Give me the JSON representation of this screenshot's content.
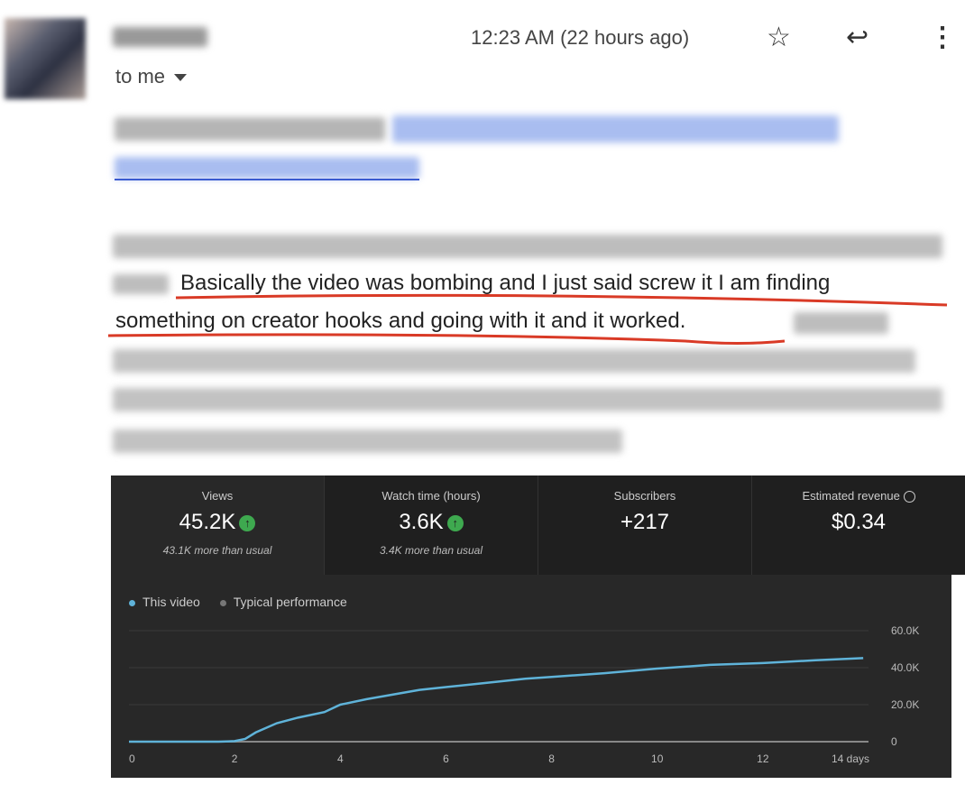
{
  "header": {
    "recipient": "to me",
    "time": "12:23 AM (22 hours ago)",
    "icons": [
      "star-icon",
      "reply-icon",
      "more-vert-icon"
    ]
  },
  "body": {
    "line2_visible": "Basically the video was bombing and I just said screw it I am finding",
    "line3_visible": "something on creator hooks and going with it and it worked."
  },
  "analytics": {
    "metrics": [
      {
        "label": "Views",
        "value": "45.2K",
        "trend": "up",
        "sub": "43.1K more than usual"
      },
      {
        "label": "Watch time (hours)",
        "value": "3.6K",
        "trend": "up",
        "sub": "3.4K more than usual"
      },
      {
        "label": "Subscribers",
        "value": "+217",
        "sub": ""
      },
      {
        "label": "Estimated revenue",
        "value": "$0.34",
        "sub": ""
      }
    ],
    "legend": [
      {
        "label": "This video",
        "color": "#5fb3d9"
      },
      {
        "label": "Typical performance",
        "color": "#777777"
      }
    ]
  },
  "chart_data": {
    "type": "line",
    "xlim": [
      0,
      14
    ],
    "ylim": [
      0,
      60000
    ],
    "x_ticks": [
      "0",
      "2",
      "4",
      "6",
      "8",
      "10",
      "12",
      "14 days"
    ],
    "y_ticks": [
      "0",
      "20.0K",
      "40.0K",
      "60.0K"
    ],
    "grid": true,
    "legend_placement": "top-left",
    "series": [
      {
        "name": "This video",
        "color": "#5fb3d9",
        "points": [
          [
            0,
            0
          ],
          [
            1.7,
            0
          ],
          [
            2,
            300
          ],
          [
            2.2,
            1500
          ],
          [
            2.4,
            5000
          ],
          [
            2.8,
            10000
          ],
          [
            3.2,
            13000
          ],
          [
            3.7,
            16000
          ],
          [
            4,
            20000
          ],
          [
            4.5,
            23000
          ],
          [
            5,
            25500
          ],
          [
            5.5,
            28000
          ],
          [
            6,
            29500
          ],
          [
            7,
            32500
          ],
          [
            7.5,
            34000
          ],
          [
            8,
            35000
          ],
          [
            9,
            37000
          ],
          [
            10,
            39500
          ],
          [
            11,
            41500
          ],
          [
            12,
            42500
          ],
          [
            13,
            44000
          ],
          [
            13.9,
            45200
          ]
        ]
      }
    ]
  }
}
